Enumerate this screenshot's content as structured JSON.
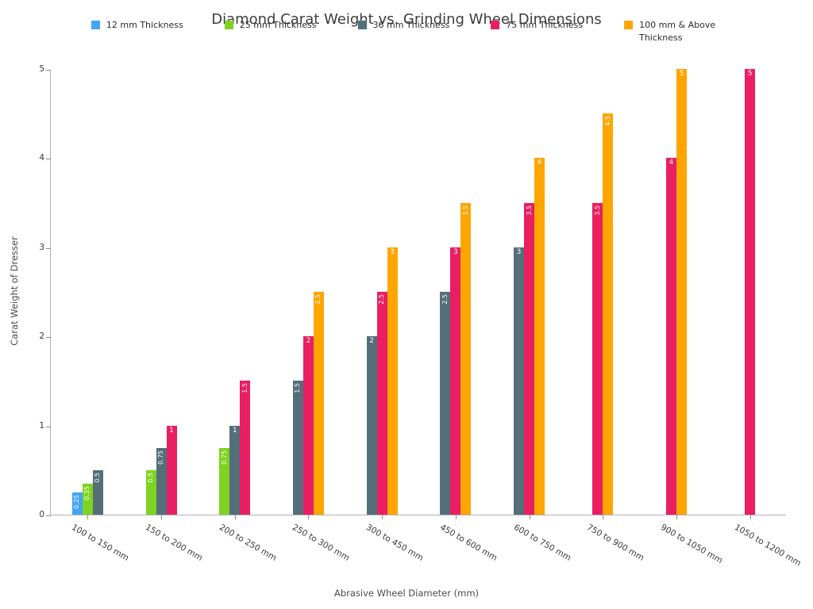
{
  "chart_data": {
    "type": "bar",
    "title": "Diamond Carat Weight vs. Grinding Wheel Dimensions",
    "xlabel": "Abrasive Wheel Diameter (mm)",
    "ylabel": "Carat Weight of Dresser",
    "ylim": [
      0,
      5
    ],
    "yticks": [
      0,
      1,
      2,
      3,
      4,
      5
    ],
    "grid": false,
    "legend_position": "top-center",
    "bar_labels_shown": true,
    "categories": [
      "100 to 150 mm",
      "150 to 200 mm",
      "200 to 250 mm",
      "250 to 300 mm",
      "300 to 450 mm",
      "450 to 600 mm",
      "600 to 750 mm",
      "750 to 900 mm",
      "900 to 1050 mm",
      "1050 to 1200 mm"
    ],
    "series": [
      {
        "name": "12 mm Thickness",
        "color": "#42A5F5",
        "values": [
          0.25,
          null,
          null,
          null,
          null,
          null,
          null,
          null,
          null,
          null
        ]
      },
      {
        "name": "25 mm Thickness",
        "color": "#7ED321",
        "values": [
          0.35,
          0.5,
          0.75,
          null,
          null,
          null,
          null,
          null,
          null,
          null
        ]
      },
      {
        "name": "36 mm Thickness",
        "color": "#546E7A",
        "values": [
          0.5,
          0.75,
          1,
          1.5,
          2,
          2.5,
          3,
          null,
          null,
          null
        ]
      },
      {
        "name": "75 mm Thickness",
        "color": "#E91E63",
        "values": [
          null,
          1,
          1.5,
          2,
          2.5,
          3,
          3.5,
          3.5,
          4,
          5
        ]
      },
      {
        "name": "100 mm & Above Thickness",
        "color": "#FFA500",
        "values": [
          null,
          null,
          null,
          2.5,
          3,
          3.5,
          4,
          4.5,
          5,
          null
        ]
      }
    ]
  }
}
